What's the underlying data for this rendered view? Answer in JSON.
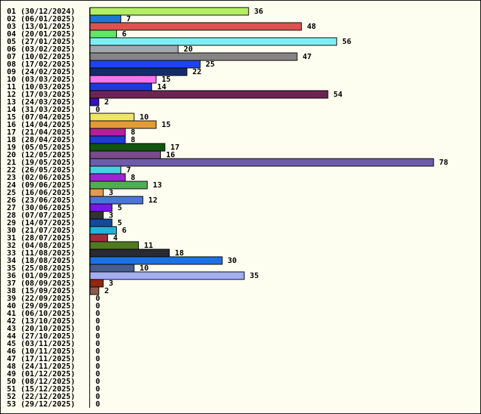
{
  "chart_data": {
    "type": "bar",
    "orientation": "horizontal",
    "title": "",
    "xlabel": "",
    "ylabel": "",
    "grid": false,
    "legend": "none",
    "xlim": [
      0,
      78
    ],
    "categories": [
      "01 (30/12/2024)",
      "02 (06/01/2025)",
      "03 (13/01/2025)",
      "04 (20/01/2025)",
      "05 (27/01/2025)",
      "06 (03/02/2025)",
      "07 (10/02/2025)",
      "08 (17/02/2025)",
      "09 (24/02/2025)",
      "10 (03/03/2025)",
      "11 (10/03/2025)",
      "12 (17/03/2025)",
      "13 (24/03/2025)",
      "14 (31/03/2025)",
      "15 (07/04/2025)",
      "16 (14/04/2025)",
      "17 (21/04/2025)",
      "18 (28/04/2025)",
      "19 (05/05/2025)",
      "20 (12/05/2025)",
      "21 (19/05/2025)",
      "22 (26/05/2025)",
      "23 (02/06/2025)",
      "24 (09/06/2025)",
      "25 (16/06/2025)",
      "26 (23/06/2025)",
      "27 (30/06/2025)",
      "28 (07/07/2025)",
      "29 (14/07/2025)",
      "30 (21/07/2025)",
      "31 (28/07/2025)",
      "32 (04/08/2025)",
      "33 (11/08/2025)",
      "34 (18/08/2025)",
      "35 (25/08/2025)",
      "36 (01/09/2025)",
      "37 (08/09/2025)",
      "38 (15/09/2025)",
      "39 (22/09/2025)",
      "40 (29/09/2025)",
      "41 (06/10/2025)",
      "42 (13/10/2025)",
      "43 (20/10/2025)",
      "44 (27/10/2025)",
      "45 (03/11/2025)",
      "46 (10/11/2025)",
      "47 (17/11/2025)",
      "48 (24/11/2025)",
      "49 (01/12/2025)",
      "50 (08/12/2025)",
      "51 (15/12/2025)",
      "52 (22/12/2025)",
      "53 (29/12/2025)"
    ],
    "values": [
      36,
      7,
      48,
      6,
      56,
      20,
      47,
      25,
      22,
      15,
      14,
      54,
      2,
      0,
      10,
      15,
      8,
      8,
      17,
      16,
      78,
      7,
      8,
      13,
      3,
      12,
      5,
      3,
      5,
      6,
      4,
      11,
      18,
      30,
      10,
      35,
      3,
      2,
      0,
      0,
      0,
      0,
      0,
      0,
      0,
      0,
      0,
      0,
      0,
      0,
      0,
      0,
      0
    ],
    "colors": [
      "#b3ef66",
      "#1f77d3",
      "#d9534f",
      "#66e266",
      "#7eeef6",
      "#a0a6ad",
      "#858585",
      "#1f44ee",
      "#152b6e",
      "#fb74f1",
      "#1c3ad9",
      "#6c2553",
      "#3811b8",
      "#888888",
      "#f0e666",
      "#e49b35",
      "#b5209a",
      "#1f3bd3",
      "#115511",
      "#7a4a8a",
      "#6d5bab",
      "#44d1e0",
      "#a024d3",
      "#52ad52",
      "#e49b4a",
      "#4b76d8",
      "#7c14f2",
      "#333333",
      "#114a9e",
      "#22b4d3",
      "#a52a3a",
      "#4f7a1f",
      "#2a2a35",
      "#1d72e3",
      "#465f8f",
      "#a3aef4",
      "#8a2a11",
      "#8a5a4a",
      "#888888",
      "#888888",
      "#888888",
      "#888888",
      "#888888",
      "#888888",
      "#888888",
      "#888888",
      "#888888",
      "#888888",
      "#888888",
      "#888888",
      "#888888",
      "#888888",
      "#888888"
    ]
  }
}
